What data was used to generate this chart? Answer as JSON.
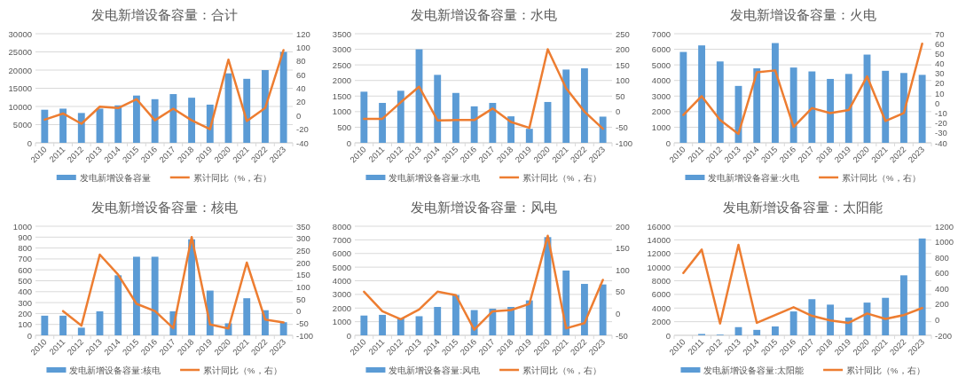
{
  "chart_data": [
    {
      "type": "bar",
      "title": "发电新增设备容量：合计",
      "categories": [
        "2010",
        "2011",
        "2012",
        "2013",
        "2014",
        "2015",
        "2016",
        "2017",
        "2018",
        "2019",
        "2020",
        "2021",
        "2022",
        "2023"
      ],
      "ylim": [
        0,
        30000
      ],
      "yticks": [
        0,
        5000,
        10000,
        15000,
        20000,
        25000,
        30000
      ],
      "y2lim": [
        -40,
        120
      ],
      "y2ticks": [
        -40,
        -20,
        0,
        20,
        40,
        60,
        80,
        100,
        120
      ],
      "grid": "y",
      "legend": "bottom",
      "series": [
        {
          "name": "发电新增设备容量",
          "color": "#5b9bd5",
          "values": [
            9100,
            9400,
            8200,
            9400,
            10300,
            13000,
            12000,
            13400,
            12400,
            10500,
            19100,
            17600,
            20000,
            25000
          ]
        },
        {
          "type": "line",
          "axis": "y2",
          "name": "累计同比（%，右）",
          "color": "#ed7d31",
          "values": [
            -6,
            3,
            -12,
            13,
            11,
            24,
            -7,
            10,
            -7,
            -20,
            82,
            -8,
            11,
            96
          ]
        }
      ]
    },
    {
      "type": "bar",
      "title": "发电新增设备容量：水电",
      "categories": [
        "2010",
        "2011",
        "2012",
        "2013",
        "2014",
        "2015",
        "2016",
        "2017",
        "2018",
        "2019",
        "2020",
        "2021",
        "2022",
        "2023"
      ],
      "ylim": [
        0,
        3500
      ],
      "yticks": [
        0,
        500,
        1000,
        1500,
        2000,
        2500,
        3000,
        3500
      ],
      "y2lim": [
        -100,
        250
      ],
      "y2ticks": [
        -100,
        -50,
        0,
        50,
        100,
        150,
        200,
        250
      ],
      "grid": "y",
      "legend": "bottom",
      "series": [
        {
          "name": "发电新增设备容量:水电",
          "color": "#5b9bd5",
          "values": [
            1640,
            1280,
            1670,
            3000,
            2180,
            1600,
            1170,
            1280,
            850,
            450,
            1310,
            2350,
            2390,
            840
          ]
        },
        {
          "type": "line",
          "axis": "y2",
          "name": "累计同比（%，右）",
          "color": "#ed7d31",
          "values": [
            -23,
            -23,
            30,
            80,
            -28,
            -27,
            -27,
            10,
            -33,
            -52,
            200,
            75,
            0,
            -55
          ]
        }
      ]
    },
    {
      "type": "bar",
      "title": "发电新增设备容量：火电",
      "categories": [
        "2010",
        "2011",
        "2012",
        "2013",
        "2014",
        "2015",
        "2016",
        "2017",
        "2018",
        "2019",
        "2020",
        "2021",
        "2022",
        "2023"
      ],
      "ylim": [
        0,
        7000
      ],
      "yticks": [
        0,
        1000,
        2000,
        3000,
        4000,
        5000,
        6000,
        7000
      ],
      "y2lim": [
        -40,
        70
      ],
      "y2ticks": [
        -40,
        -30,
        -20,
        -10,
        0,
        10,
        20,
        30,
        40,
        50,
        60,
        70
      ],
      "grid": "y",
      "legend": "bottom",
      "series": [
        {
          "name": "发电新增设备容量:火电",
          "color": "#5b9bd5",
          "values": [
            5830,
            6250,
            5220,
            3650,
            4780,
            6400,
            4830,
            4580,
            4100,
            4420,
            5660,
            4620,
            4480,
            4360
          ]
        },
        {
          "type": "line",
          "axis": "y2",
          "name": "累计同比（%，右）",
          "color": "#ed7d31",
          "values": [
            -12,
            7,
            -17,
            -31,
            31,
            33,
            -24,
            -5,
            -10,
            -7,
            27,
            -18,
            -10,
            60
          ]
        }
      ]
    },
    {
      "type": "bar",
      "title": "发电新增设备容量：核电",
      "categories": [
        "2010",
        "2011",
        "2012",
        "2013",
        "2014",
        "2015",
        "2016",
        "2017",
        "2018",
        "2019",
        "2020",
        "2021",
        "2022",
        "2023"
      ],
      "ylim": [
        0,
        1000
      ],
      "yticks": [
        0,
        100,
        200,
        300,
        400,
        500,
        600,
        700,
        800,
        900,
        1000
      ],
      "y2lim": [
        -100,
        350
      ],
      "y2ticks": [
        -100,
        -50,
        0,
        50,
        100,
        150,
        200,
        250,
        300,
        350
      ],
      "grid": "y",
      "legend": "bottom",
      "series": [
        {
          "name": "发电新增设备容量:核电",
          "color": "#5b9bd5",
          "values": [
            180,
            180,
            70,
            220,
            550,
            720,
            720,
            220,
            880,
            410,
            110,
            340,
            230,
            120
          ]
        },
        {
          "type": "line",
          "axis": "y2",
          "name": "累计同比（%，右）",
          "color": "#ed7d31",
          "values": [
            null,
            0,
            -60,
            233,
            150,
            30,
            0,
            -70,
            305,
            -55,
            -72,
            200,
            -35,
            -47
          ]
        }
      ]
    },
    {
      "type": "bar",
      "title": "发电新增设备容量：风电",
      "categories": [
        "2010",
        "2011",
        "2012",
        "2013",
        "2014",
        "2015",
        "2016",
        "2017",
        "2018",
        "2019",
        "2020",
        "2021",
        "2022",
        "2023"
      ],
      "ylim": [
        0,
        8000
      ],
      "yticks": [
        0,
        1000,
        2000,
        3000,
        4000,
        5000,
        6000,
        7000,
        8000
      ],
      "y2lim": [
        -50,
        200
      ],
      "y2ticks": [
        -50,
        0,
        50,
        100,
        150,
        200
      ],
      "grid": "y",
      "legend": "bottom",
      "series": [
        {
          "name": "发电新增设备容量:风电",
          "color": "#5b9bd5",
          "values": [
            1450,
            1500,
            1250,
            1400,
            2080,
            2950,
            1850,
            1950,
            2080,
            2560,
            7200,
            4750,
            3770,
            3730
          ]
        },
        {
          "type": "line",
          "axis": "y2",
          "name": "累计同比（%，右）",
          "color": "#ed7d31",
          "values": [
            50,
            5,
            -13,
            9,
            50,
            42,
            -37,
            5,
            8,
            22,
            178,
            -34,
            -22,
            77
          ]
        }
      ]
    },
    {
      "type": "bar",
      "title": "发电新增设备容量：太阳能",
      "categories": [
        "2010",
        "2011",
        "2012",
        "2013",
        "2014",
        "2015",
        "2016",
        "2017",
        "2018",
        "2019",
        "2020",
        "2021",
        "2022",
        "2023"
      ],
      "ylim": [
        0,
        16000
      ],
      "yticks": [
        0,
        2000,
        4000,
        6000,
        8000,
        10000,
        12000,
        14000,
        16000
      ],
      "y2lim": [
        -200,
        1200
      ],
      "y2ticks": [
        -200,
        0,
        200,
        400,
        600,
        800,
        1000,
        1200
      ],
      "grid": "y",
      "legend": "bottom",
      "series": [
        {
          "name": "发电新增设备容量:太阳能",
          "color": "#5b9bd5",
          "values": [
            0,
            200,
            100,
            1200,
            800,
            1300,
            3500,
            5300,
            4500,
            2600,
            4800,
            5500,
            8800,
            14200
          ]
        },
        {
          "type": "line",
          "axis": "y2",
          "name": "累计同比（%，右）",
          "color": "#ed7d31",
          "values": [
            600,
            900,
            -50,
            960,
            -40,
            60,
            160,
            50,
            -10,
            -40,
            80,
            10,
            60,
            150
          ]
        }
      ]
    }
  ]
}
